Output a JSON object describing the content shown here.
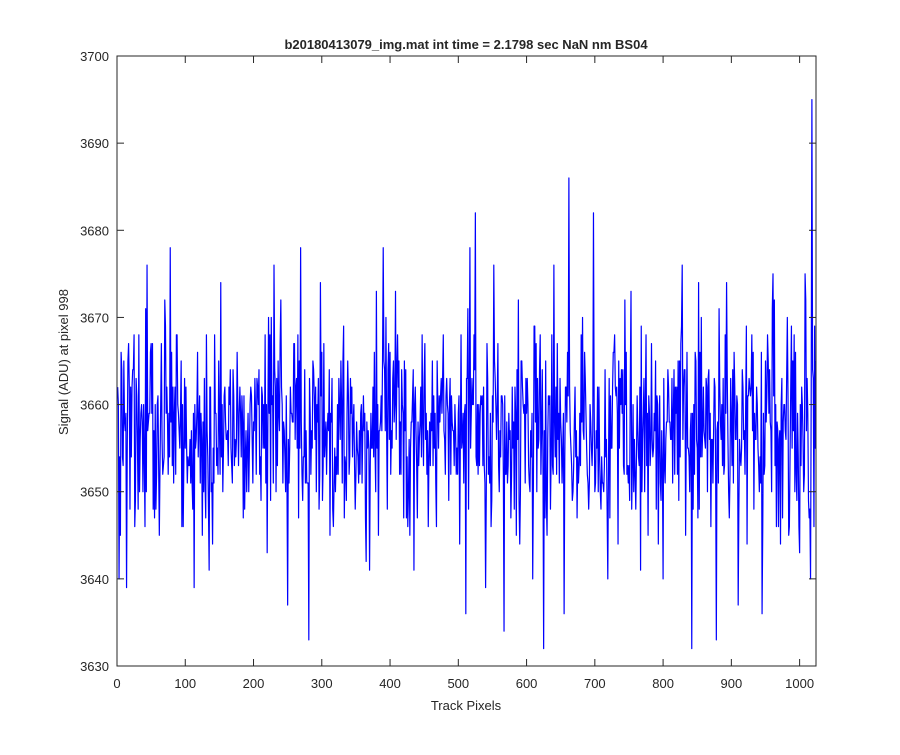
{
  "chart_data": {
    "type": "line",
    "title": "b20180413079_img.mat int time = 2.1798 sec  NaN nm BS04",
    "xlabel": "Track Pixels",
    "ylabel": "Signal (ADU) at pixel 998",
    "xlim": [
      0,
      1024
    ],
    "ylim": [
      3630,
      3700
    ],
    "xticks": [
      0,
      100,
      200,
      300,
      400,
      500,
      600,
      700,
      800,
      900,
      1000
    ],
    "yticks": [
      3630,
      3640,
      3650,
      3660,
      3670,
      3680,
      3690,
      3700
    ],
    "grid": false,
    "legend": "none",
    "series_color": "#0000ff",
    "series": [
      {
        "x_start": 1,
        "x_step": 1,
        "noise_mean": 3657,
        "noise_std": 6,
        "values_described": "noisy trace of 1024 points centred near 3657 ADU",
        "key_points": [
          [
            3,
            3640
          ],
          [
            7,
            3664
          ],
          [
            14,
            3639
          ],
          [
            20,
            3662
          ],
          [
            27,
            3649
          ],
          [
            32,
            3668
          ],
          [
            41,
            3646
          ],
          [
            44,
            3676
          ],
          [
            55,
            3647
          ],
          [
            70,
            3672
          ],
          [
            78,
            3678
          ],
          [
            95,
            3646
          ],
          [
            113,
            3639
          ],
          [
            135,
            3641
          ],
          [
            152,
            3674
          ],
          [
            170,
            3664
          ],
          [
            202,
            3663
          ],
          [
            230,
            3676
          ],
          [
            250,
            3637
          ],
          [
            265,
            3668
          ],
          [
            269,
            3678
          ],
          [
            281,
            3633
          ],
          [
            298,
            3674
          ],
          [
            316,
            3648
          ],
          [
            370,
            3641
          ],
          [
            380,
            3673
          ],
          [
            390,
            3678
          ],
          [
            435,
            3641
          ],
          [
            447,
            3668
          ],
          [
            478,
            3668
          ],
          [
            511,
            3636
          ],
          [
            517,
            3678
          ],
          [
            525,
            3682
          ],
          [
            540,
            3639
          ],
          [
            552,
            3676
          ],
          [
            567,
            3634
          ],
          [
            588,
            3672
          ],
          [
            609,
            3640
          ],
          [
            625,
            3632
          ],
          [
            640,
            3676
          ],
          [
            655,
            3636
          ],
          [
            662,
            3686
          ],
          [
            698,
            3682
          ],
          [
            719,
            3640
          ],
          [
            745,
            3660
          ],
          [
            775,
            3668
          ],
          [
            800,
            3640
          ],
          [
            828,
            3676
          ],
          [
            842,
            3632
          ],
          [
            852,
            3674
          ],
          [
            870,
            3646
          ],
          [
            878,
            3633
          ],
          [
            893,
            3674
          ],
          [
            910,
            3637
          ],
          [
            930,
            3668
          ],
          [
            945,
            3636
          ],
          [
            961,
            3675
          ],
          [
            975,
            3647
          ],
          [
            1000,
            3643
          ],
          [
            1008,
            3675
          ],
          [
            1016,
            3640
          ],
          [
            1018,
            3695
          ],
          [
            1020,
            3663
          ],
          [
            1024,
            3665
          ]
        ]
      }
    ]
  }
}
